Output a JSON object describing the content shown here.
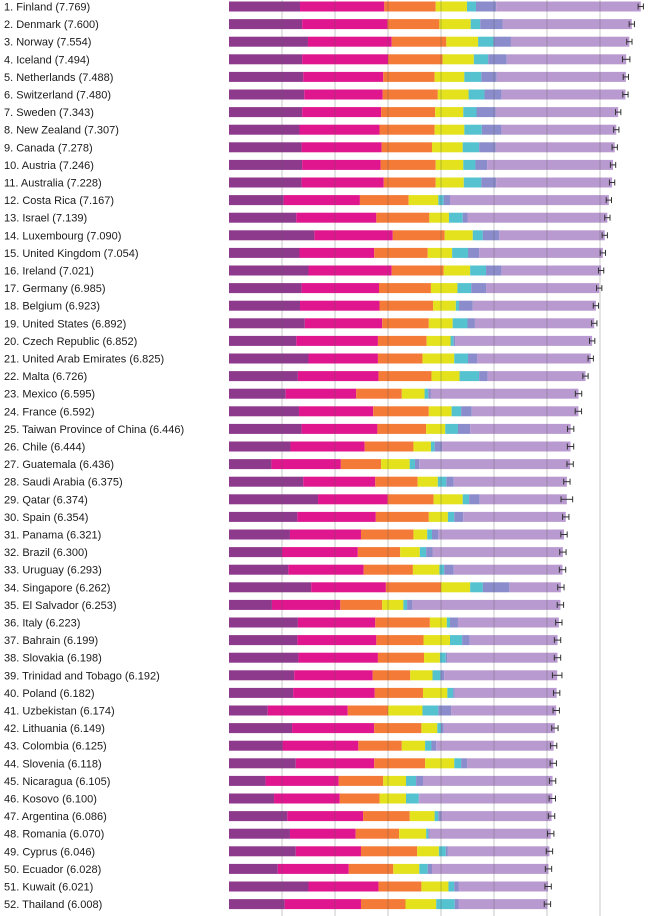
{
  "chart_data": {
    "type": "bar",
    "orientation": "horizontal",
    "stacked": true,
    "grid": true,
    "xlim": [
      0,
      8
    ],
    "colors": {
      "segments": [
        "#8e3a8c",
        "#e0168e",
        "#f47a38",
        "#e3e21d",
        "#55c2cf",
        "#8a8ccc",
        "#b89ad0"
      ],
      "error_bar": "#333333",
      "grid": "#5a5a5a",
      "text": "#1a1a1a"
    },
    "categories": [
      "1.  Finland (7.769)",
      "2.  Denmark (7.600)",
      "3.  Norway (7.554)",
      "4.  Iceland (7.494)",
      "5.  Netherlands (7.488)",
      "6.  Switzerland (7.480)",
      "7.  Sweden (7.343)",
      "8.  New Zealand (7.307)",
      "9.  Canada (7.278)",
      "10.  Austria (7.246)",
      "11.  Australia (7.228)",
      "12.  Costa Rica (7.167)",
      "13.  Israel (7.139)",
      "14.  Luxembourg (7.090)",
      "15.  United Kingdom (7.054)",
      "16.  Ireland (7.021)",
      "17.  Germany (6.985)",
      "18.  Belgium (6.923)",
      "19.  United States (6.892)",
      "20.  Czech Republic (6.852)",
      "21.  United Arab Emirates (6.825)",
      "22.  Malta (6.726)",
      "23.  Mexico (6.595)",
      "24.  France (6.592)",
      "25.  Taiwan Province of China (6.446)",
      "26.  Chile (6.444)",
      "27.  Guatemala (6.436)",
      "28.  Saudi Arabia (6.375)",
      "29.  Qatar (6.374)",
      "30.  Spain (6.354)",
      "31.  Panama (6.321)",
      "32.  Brazil (6.300)",
      "33.  Uruguay (6.293)",
      "34.  Singapore (6.262)",
      "35.  El Salvador (6.253)",
      "36.  Italy (6.223)",
      "37.  Bahrain (6.199)",
      "38.  Slovakia (6.198)",
      "39.  Trinidad and Tobago (6.192)",
      "40.  Poland (6.182)",
      "41.  Uzbekistan (6.174)",
      "42.  Lithuania (6.149)",
      "43.  Colombia (6.125)",
      "44.  Slovenia (6.118)",
      "45.  Nicaragua (6.105)",
      "46.  Kosovo (6.100)",
      "47.  Argentina (6.086)",
      "48.  Romania (6.070)",
      "49.  Cyprus (6.046)",
      "50.  Ecuador (6.028)",
      "51.  Kuwait (6.021)",
      "52.  Thailand (6.008)"
    ],
    "values": [
      7.769,
      7.6,
      7.554,
      7.494,
      7.488,
      7.48,
      7.343,
      7.307,
      7.278,
      7.246,
      7.228,
      7.167,
      7.139,
      7.09,
      7.054,
      7.021,
      6.985,
      6.923,
      6.892,
      6.852,
      6.825,
      6.726,
      6.595,
      6.592,
      6.446,
      6.444,
      6.436,
      6.375,
      6.374,
      6.354,
      6.321,
      6.3,
      6.293,
      6.262,
      6.253,
      6.223,
      6.199,
      6.198,
      6.192,
      6.182,
      6.174,
      6.149,
      6.125,
      6.118,
      6.105,
      6.1,
      6.086,
      6.07,
      6.046,
      6.028,
      6.021,
      6.008
    ],
    "error": [
      0.05,
      0.05,
      0.05,
      0.07,
      0.05,
      0.05,
      0.05,
      0.05,
      0.05,
      0.05,
      0.05,
      0.05,
      0.05,
      0.05,
      0.05,
      0.05,
      0.05,
      0.05,
      0.05,
      0.05,
      0.05,
      0.05,
      0.06,
      0.06,
      0.06,
      0.06,
      0.06,
      0.06,
      0.11,
      0.06,
      0.06,
      0.06,
      0.06,
      0.06,
      0.06,
      0.06,
      0.06,
      0.06,
      0.09,
      0.06,
      0.06,
      0.06,
      0.06,
      0.06,
      0.06,
      0.06,
      0.06,
      0.06,
      0.06,
      0.06,
      0.06,
      0.06
    ],
    "segments": [
      [
        1.34,
        1.59,
        0.97,
        0.59,
        0.17,
        0.38
      ],
      [
        1.38,
        1.61,
        0.98,
        0.59,
        0.18,
        0.42
      ],
      [
        1.49,
        1.58,
        1.03,
        0.6,
        0.29,
        0.33
      ],
      [
        1.38,
        1.62,
        1.03,
        0.59,
        0.27,
        0.35
      ],
      [
        1.4,
        1.51,
        0.97,
        0.56,
        0.32,
        0.29
      ],
      [
        1.42,
        1.48,
        1.04,
        0.58,
        0.3,
        0.32
      ],
      [
        1.38,
        1.49,
        1.02,
        0.53,
        0.25,
        0.36
      ],
      [
        1.33,
        1.51,
        1.04,
        0.56,
        0.33,
        0.37
      ],
      [
        1.37,
        1.51,
        0.95,
        0.58,
        0.31,
        0.31
      ],
      [
        1.38,
        1.48,
        1.04,
        0.52,
        0.23,
        0.22
      ],
      [
        1.37,
        1.55,
        0.98,
        0.53,
        0.33,
        0.28
      ],
      [
        1.03,
        1.44,
        0.92,
        0.56,
        0.1,
        0.12
      ],
      [
        1.27,
        1.51,
        1.0,
        0.37,
        0.26,
        0.09
      ],
      [
        1.61,
        1.48,
        0.98,
        0.53,
        0.19,
        0.31
      ],
      [
        1.33,
        1.41,
        1.01,
        0.46,
        0.3,
        0.21
      ],
      [
        1.5,
        1.57,
        0.98,
        0.5,
        0.3,
        0.29
      ],
      [
        1.37,
        1.46,
        0.98,
        0.5,
        0.26,
        0.28
      ],
      [
        1.34,
        1.5,
        1.01,
        0.43,
        0.06,
        0.26
      ],
      [
        1.43,
        1.46,
        0.88,
        0.45,
        0.28,
        0.14
      ],
      [
        1.27,
        1.54,
        0.92,
        0.45,
        0.06,
        0.03
      ],
      [
        1.5,
        1.31,
        0.84,
        0.6,
        0.26,
        0.17
      ],
      [
        1.3,
        1.52,
        1.0,
        0.53,
        0.37,
        0.16
      ],
      [
        1.07,
        1.33,
        0.86,
        0.43,
        0.07,
        0.05
      ],
      [
        1.32,
        1.4,
        1.05,
        0.43,
        0.18,
        0.2
      ],
      [
        1.37,
        1.43,
        0.92,
        0.36,
        0.24,
        0.23
      ],
      [
        1.16,
        1.4,
        0.92,
        0.33,
        0.07,
        0.14
      ],
      [
        0.8,
        1.31,
        0.76,
        0.54,
        0.1,
        0.08
      ],
      [
        1.4,
        1.36,
        0.8,
        0.38,
        0.16,
        0.14
      ],
      [
        1.68,
        1.31,
        0.87,
        0.55,
        0.12,
        0.2
      ],
      [
        1.29,
        1.48,
        1.0,
        0.36,
        0.12,
        0.17
      ],
      [
        1.15,
        1.34,
        0.99,
        0.26,
        0.09,
        0.12
      ],
      [
        1.0,
        1.43,
        0.8,
        0.37,
        0.12,
        0.12
      ],
      [
        1.12,
        1.42,
        0.93,
        0.5,
        0.09,
        0.18
      ],
      [
        1.55,
        1.41,
        1.04,
        0.55,
        0.24,
        0.5
      ],
      [
        0.81,
        1.29,
        0.79,
        0.4,
        0.07,
        0.1
      ],
      [
        1.3,
        1.46,
        1.03,
        0.32,
        0.06,
        0.15
      ],
      [
        1.29,
        1.49,
        0.89,
        0.5,
        0.23,
        0.14
      ],
      [
        1.31,
        1.5,
        0.87,
        0.3,
        0.11,
        0.03
      ],
      [
        1.23,
        1.48,
        0.71,
        0.42,
        0.15,
        0.07
      ],
      [
        1.21,
        1.54,
        0.91,
        0.46,
        0.11,
        0.03
      ],
      [
        0.73,
        1.51,
        0.76,
        0.65,
        0.3,
        0.24
      ],
      [
        1.19,
        1.55,
        0.89,
        0.3,
        0.07,
        0.05
      ],
      [
        1.01,
        1.43,
        0.82,
        0.44,
        0.12,
        0.09
      ],
      [
        1.26,
        1.48,
        0.96,
        0.55,
        0.13,
        0.11
      ],
      [
        0.69,
        1.38,
        0.84,
        0.43,
        0.19,
        0.13
      ],
      [
        0.85,
        1.24,
        0.75,
        0.5,
        0.24,
        0.01
      ],
      [
        1.1,
        1.43,
        0.88,
        0.47,
        0.07,
        0.06
      ],
      [
        1.15,
        1.24,
        0.82,
        0.51,
        0.04,
        0.03
      ],
      [
        1.26,
        1.23,
        1.06,
        0.41,
        0.13,
        0.04
      ],
      [
        0.92,
        1.34,
        0.84,
        0.49,
        0.16,
        0.08
      ],
      [
        1.5,
        1.32,
        0.81,
        0.51,
        0.11,
        0.08
      ],
      [
        1.05,
        1.44,
        0.84,
        0.58,
        0.35,
        0.07
      ]
    ]
  }
}
